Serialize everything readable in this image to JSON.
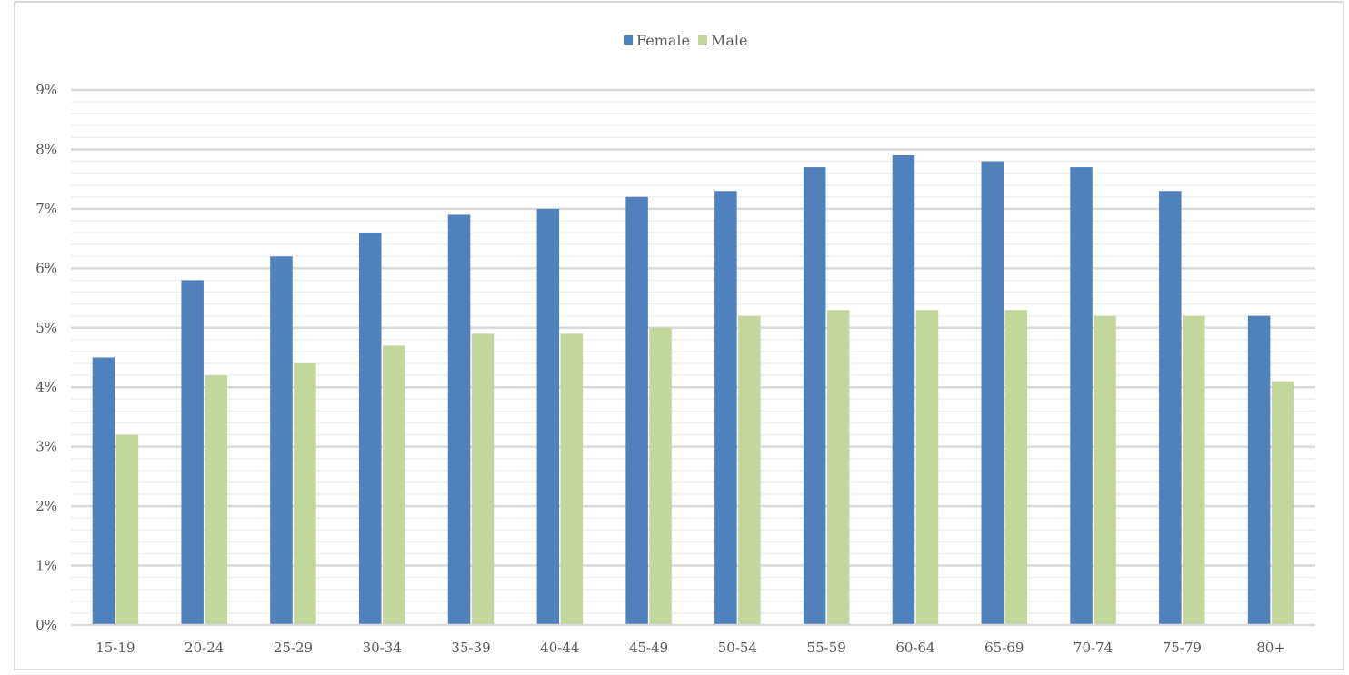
{
  "chart_data": {
    "type": "bar",
    "categories": [
      "15-19",
      "20-24",
      "25-29",
      "30-34",
      "35-39",
      "40-44",
      "45-49",
      "50-54",
      "55-59",
      "60-64",
      "65-69",
      "70-74",
      "75-79",
      "80+"
    ],
    "series": [
      {
        "name": "Female",
        "color": "#4f81bd",
        "values": [
          4.5,
          5.8,
          6.2,
          6.6,
          6.9,
          7.0,
          7.2,
          7.3,
          7.7,
          7.9,
          7.8,
          7.7,
          7.3,
          5.2
        ]
      },
      {
        "name": "Male",
        "color": "#c3d69b",
        "values": [
          3.2,
          4.2,
          4.4,
          4.7,
          4.9,
          4.9,
          5.0,
          5.2,
          5.3,
          5.3,
          5.3,
          5.2,
          5.2,
          4.1
        ]
      }
    ],
    "yticks": [
      "0%",
      "1%",
      "2%",
      "3%",
      "4%",
      "5%",
      "6%",
      "7%",
      "8%",
      "9%"
    ],
    "ylim": [
      0,
      9
    ],
    "title": "",
    "xlabel": "",
    "ylabel": "",
    "grid": true,
    "legend_position": "top-center"
  }
}
